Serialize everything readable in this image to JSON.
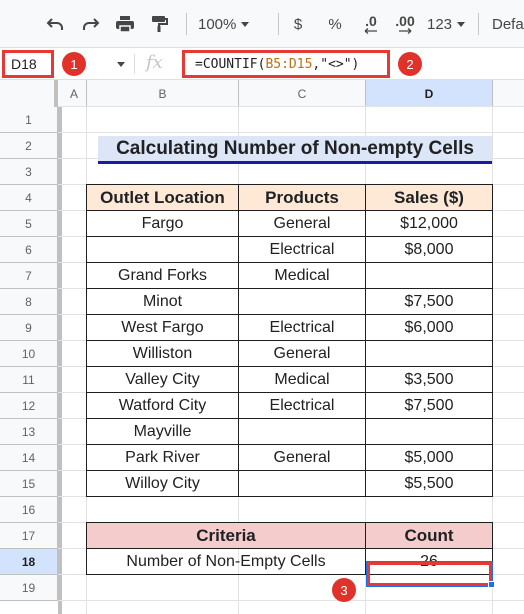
{
  "toolbar": {
    "undo_icon": "undo-icon",
    "redo_icon": "redo-icon",
    "print_icon": "print-icon",
    "paint_format_icon": "paint-format-icon",
    "zoom": "100%",
    "currency": "$",
    "percent": "%",
    "decrease_decimal": ".0",
    "increase_decimal": ".00",
    "more_formats": "123",
    "font": "Defa"
  },
  "formula_bar": {
    "name_box": "D18",
    "fx_label": "fx",
    "formula_prefix": "=COUNTIF(",
    "formula_range": "B5:D15",
    "formula_suffix": ",\"<>\")",
    "badge_1": "1",
    "badge_2": "2"
  },
  "columns": [
    "A",
    "B",
    "C",
    "D"
  ],
  "rows": [
    "1",
    "2",
    "3",
    "4",
    "5",
    "6",
    "7",
    "8",
    "9",
    "10",
    "11",
    "12",
    "13",
    "14",
    "15",
    "16",
    "17",
    "18",
    "19"
  ],
  "active_cell": {
    "column": "D",
    "row": "18"
  },
  "sheet": {
    "title": "Calculating Number of Non-empty Cells",
    "headers": [
      "Outlet Location",
      "Products",
      "Sales ($)"
    ],
    "data": [
      [
        "Fargo",
        "General",
        "$12,000"
      ],
      [
        "",
        "Electrical",
        "$8,000"
      ],
      [
        "Grand Forks",
        "Medical",
        ""
      ],
      [
        "Minot",
        "",
        "$7,500"
      ],
      [
        "West Fargo",
        "Electrical",
        "$6,000"
      ],
      [
        "Williston",
        "General",
        ""
      ],
      [
        "Valley City",
        "Medical",
        "$3,500"
      ],
      [
        "Watford City",
        "Electrical",
        "$7,500"
      ],
      [
        "Mayville",
        "",
        ""
      ],
      [
        "Park River",
        "General",
        "$5,000"
      ],
      [
        "Willoy City",
        "",
        "$5,500"
      ]
    ],
    "criteria_header": "Criteria",
    "count_header": "Count",
    "criteria_label": "Number of Non-Empty Cells",
    "count_value": "26",
    "badge_3": "3"
  },
  "colors": {
    "accent_red": "#e53935",
    "selection_blue": "#1a73e8",
    "title_fill": "#dce6f6",
    "header_fill": "#fde9d6",
    "criteria_fill": "#f4cccc"
  }
}
